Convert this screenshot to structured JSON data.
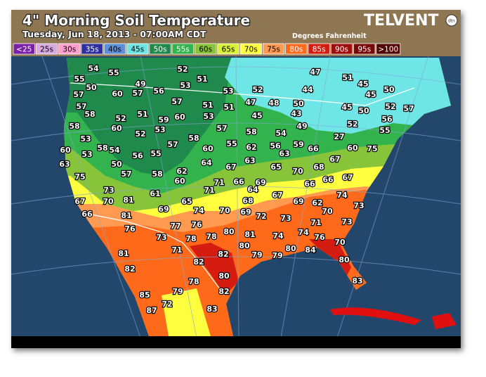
{
  "header": {
    "title": "4\" Morning Soil Temperature",
    "subtitle": "Tuesday, Jun 18, 2013 - 07:00AM CDT",
    "brand": "TELVENT",
    "brand_mark": "dtn",
    "units": "Degrees Fahrenheit"
  },
  "legend": [
    {
      "label": "<25",
      "color": "#7a1fa8"
    },
    {
      "label": "25s",
      "color": "#d8a8e0"
    },
    {
      "label": "30s",
      "color": "#ff9fd0"
    },
    {
      "label": "35s",
      "color": "#2e2e9e"
    },
    {
      "label": "40s",
      "color": "#5b8fd8"
    },
    {
      "label": "45s",
      "color": "#6fe6e6"
    },
    {
      "label": "50s",
      "color": "#1f8a4c"
    },
    {
      "label": "55s",
      "color": "#33b34d"
    },
    {
      "label": "60s",
      "color": "#88c43a"
    },
    {
      "label": "65s",
      "color": "#d8f23a"
    },
    {
      "label": "70s",
      "color": "#ffff40"
    },
    {
      "label": "75s",
      "color": "#ff9a50"
    },
    {
      "label": "80s",
      "color": "#ff6a1a"
    },
    {
      "label": "85s",
      "color": "#d41c10"
    },
    {
      "label": "90s",
      "color": "#a00d0d"
    },
    {
      "label": "95s",
      "color": "#780808"
    },
    {
      "label": ">100",
      "color": "#520404"
    }
  ],
  "stations": [
    54,
    55,
    52,
    47,
    51,
    45,
    55,
    50,
    49,
    51,
    53,
    53,
    52,
    44,
    45,
    50,
    57,
    60,
    57,
    56,
    57,
    57,
    51,
    51,
    47,
    48,
    50,
    45,
    50,
    52,
    57,
    58,
    51,
    59,
    60,
    53,
    45,
    43,
    56,
    52,
    58,
    60,
    53,
    57,
    58,
    54,
    49,
    52,
    55,
    52,
    58,
    27,
    53,
    58,
    54,
    55,
    56,
    59,
    66,
    60,
    75,
    60,
    53,
    56,
    55,
    57,
    60,
    62,
    63,
    63,
    50,
    64,
    67,
    63,
    65,
    70,
    68,
    67,
    75,
    57,
    58,
    62,
    60,
    71,
    66,
    69,
    66,
    66,
    67,
    73,
    71,
    68,
    64,
    61,
    67,
    70,
    81,
    65,
    67,
    74,
    66,
    81,
    69,
    74,
    70,
    69,
    72,
    69,
    62,
    70,
    73,
    76,
    77,
    76,
    80,
    81,
    73,
    71,
    74,
    76,
    73,
    78,
    74,
    78,
    73,
    71,
    80,
    80,
    84,
    70,
    81,
    82,
    79,
    79,
    82,
    80,
    82,
    80,
    78,
    83,
    85,
    79,
    82,
    72,
    87,
    83
  ]
}
